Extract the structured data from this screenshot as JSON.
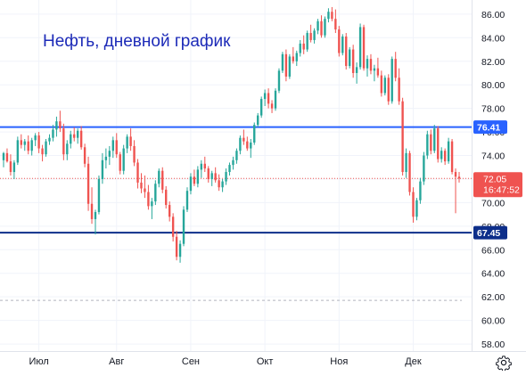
{
  "title": "Нефть, дневной график",
  "colors": {
    "up": "#26a69a",
    "down": "#ef5350",
    "resistance": "#2962ff",
    "support": "#0d2e8a",
    "current": "#ef5350",
    "grid": "#f0f3fa",
    "dashed": "#b2b5be"
  },
  "icons": {
    "settings": "gear-icon"
  },
  "chart_data": {
    "type": "candlestick",
    "ylim": [
      57.4,
      87.2
    ],
    "y_ticks": [
      "58.00",
      "60.00",
      "62.00",
      "64.00",
      "66.00",
      "68.00",
      "70.00",
      "72.00",
      "74.00",
      "76.00",
      "78.00",
      "80.00",
      "82.00",
      "84.00",
      "86.00"
    ],
    "x_ticks": [
      "Июл",
      "Авг",
      "Сен",
      "Окт",
      "Ноя",
      "Дек"
    ],
    "levels": [
      {
        "name": "resistance",
        "value": 76.41,
        "label": "76.41"
      },
      {
        "name": "support",
        "value": 67.45,
        "label": "67.45"
      }
    ],
    "current": {
      "value": 72.05,
      "label": "72.05",
      "countdown": "16:47:52"
    },
    "dashed_level": 61.7,
    "candles": [
      [
        73.6,
        74.3,
        73.0,
        74.2
      ],
      [
        74.2,
        74.6,
        73.4,
        73.5
      ],
      [
        73.5,
        74.1,
        72.3,
        72.6
      ],
      [
        72.6,
        73.6,
        72.0,
        73.4
      ],
      [
        73.4,
        75.6,
        73.2,
        75.3
      ],
      [
        75.3,
        75.8,
        74.6,
        74.9
      ],
      [
        74.9,
        75.4,
        74.4,
        75.2
      ],
      [
        75.2,
        75.7,
        74.1,
        74.4
      ],
      [
        74.4,
        75.5,
        74.0,
        75.3
      ],
      [
        75.3,
        75.9,
        74.8,
        75.7
      ],
      [
        75.7,
        76.0,
        74.2,
        74.6
      ],
      [
        74.6,
        74.9,
        73.5,
        74.1
      ],
      [
        74.1,
        75.4,
        73.9,
        75.2
      ],
      [
        75.2,
        75.8,
        74.9,
        75.5
      ],
      [
        75.5,
        76.6,
        75.2,
        76.2
      ],
      [
        76.2,
        77.3,
        75.6,
        76.9
      ],
      [
        76.9,
        77.8,
        76.0,
        76.3
      ],
      [
        76.3,
        76.7,
        73.6,
        74.1
      ],
      [
        74.1,
        75.3,
        73.6,
        75.0
      ],
      [
        75.0,
        76.1,
        74.6,
        75.8
      ],
      [
        75.8,
        76.4,
        75.2,
        75.5
      ],
      [
        75.5,
        76.3,
        75.0,
        76.1
      ],
      [
        76.1,
        76.5,
        74.5,
        74.7
      ],
      [
        74.7,
        75.0,
        73.0,
        73.3
      ],
      [
        73.3,
        73.9,
        69.3,
        69.9
      ],
      [
        69.9,
        71.3,
        68.2,
        68.6
      ],
      [
        68.6,
        69.4,
        67.3,
        69.2
      ],
      [
        69.2,
        72.3,
        69.0,
        72.0
      ],
      [
        72.0,
        74.2,
        71.6,
        73.6
      ],
      [
        73.6,
        74.6,
        72.9,
        73.9
      ],
      [
        73.9,
        74.8,
        73.2,
        74.4
      ],
      [
        74.4,
        75.6,
        73.8,
        75.3
      ],
      [
        75.3,
        75.9,
        73.8,
        74.1
      ],
      [
        74.1,
        74.3,
        72.4,
        72.7
      ],
      [
        72.7,
        74.9,
        72.4,
        74.6
      ],
      [
        74.6,
        75.8,
        74.2,
        75.6
      ],
      [
        75.6,
        76.3,
        74.4,
        74.8
      ],
      [
        74.8,
        75.3,
        73.1,
        73.4
      ],
      [
        73.4,
        73.7,
        71.2,
        71.7
      ],
      [
        71.7,
        72.5,
        70.8,
        71.2
      ],
      [
        71.2,
        72.3,
        70.4,
        70.9
      ],
      [
        70.9,
        71.5,
        69.4,
        69.7
      ],
      [
        69.7,
        70.4,
        68.6,
        70.1
      ],
      [
        70.1,
        71.9,
        69.8,
        71.6
      ],
      [
        71.6,
        72.9,
        71.3,
        72.7
      ],
      [
        72.7,
        73.0,
        70.8,
        71.1
      ],
      [
        71.1,
        71.4,
        69.5,
        69.8
      ],
      [
        69.8,
        70.1,
        68.4,
        68.8
      ],
      [
        68.8,
        69.1,
        66.7,
        67.1
      ],
      [
        67.1,
        67.6,
        65.1,
        65.4
      ],
      [
        65.4,
        66.8,
        64.9,
        66.5
      ],
      [
        66.5,
        69.7,
        66.3,
        69.4
      ],
      [
        69.4,
        71.3,
        69.2,
        71.0
      ],
      [
        71.0,
        72.5,
        70.7,
        72.2
      ],
      [
        72.2,
        72.8,
        71.4,
        71.6
      ],
      [
        71.6,
        73.1,
        71.3,
        72.8
      ],
      [
        72.8,
        73.6,
        72.1,
        73.3
      ],
      [
        73.3,
        73.9,
        72.6,
        72.9
      ],
      [
        72.9,
        73.1,
        71.7,
        72.0
      ],
      [
        72.0,
        72.7,
        71.4,
        72.5
      ],
      [
        72.5,
        73.0,
        71.7,
        71.9
      ],
      [
        71.9,
        72.4,
        71.0,
        71.3
      ],
      [
        71.3,
        72.0,
        70.9,
        71.8
      ],
      [
        71.8,
        72.9,
        71.5,
        72.6
      ],
      [
        72.6,
        73.4,
        72.3,
        73.2
      ],
      [
        73.2,
        73.9,
        72.8,
        73.6
      ],
      [
        73.6,
        74.6,
        73.3,
        74.4
      ],
      [
        74.4,
        75.7,
        74.1,
        75.5
      ],
      [
        75.5,
        76.2,
        74.9,
        75.2
      ],
      [
        75.2,
        75.6,
        74.4,
        74.6
      ],
      [
        74.6,
        75.4,
        73.8,
        75.1
      ],
      [
        75.1,
        76.8,
        74.9,
        76.6
      ],
      [
        76.6,
        77.6,
        76.4,
        77.4
      ],
      [
        77.4,
        79.0,
        77.2,
        78.8
      ],
      [
        78.8,
        79.6,
        78.2,
        79.3
      ],
      [
        79.3,
        79.7,
        78.0,
        78.4
      ],
      [
        78.4,
        78.7,
        77.6,
        78.0
      ],
      [
        78.0,
        79.7,
        77.8,
        79.5
      ],
      [
        79.5,
        81.4,
        79.3,
        81.2
      ],
      [
        81.2,
        82.8,
        81.0,
        82.6
      ],
      [
        82.6,
        83.0,
        80.3,
        80.7
      ],
      [
        80.7,
        82.6,
        80.5,
        82.4
      ],
      [
        82.4,
        83.2,
        81.8,
        82.0
      ],
      [
        82.0,
        82.9,
        81.6,
        82.7
      ],
      [
        82.7,
        83.8,
        82.4,
        83.5
      ],
      [
        83.5,
        84.2,
        82.6,
        83.0
      ],
      [
        83.0,
        84.6,
        82.8,
        84.4
      ],
      [
        84.4,
        85.1,
        83.6,
        83.8
      ],
      [
        83.8,
        84.8,
        83.5,
        84.6
      ],
      [
        84.6,
        85.6,
        84.3,
        85.4
      ],
      [
        85.4,
        85.9,
        84.0,
        84.2
      ],
      [
        84.2,
        85.8,
        84.0,
        85.6
      ],
      [
        85.6,
        86.5,
        85.3,
        86.2
      ],
      [
        86.2,
        86.6,
        85.4,
        85.6
      ],
      [
        85.6,
        86.4,
        84.4,
        84.7
      ],
      [
        84.7,
        85.0,
        82.4,
        82.7
      ],
      [
        82.7,
        84.3,
        82.5,
        84.1
      ],
      [
        84.1,
        84.4,
        81.3,
        81.6
      ],
      [
        81.6,
        83.2,
        81.4,
        83.0
      ],
      [
        83.0,
        83.4,
        80.6,
        81.0
      ],
      [
        81.0,
        81.9,
        80.1,
        81.5
      ],
      [
        81.5,
        85.2,
        81.3,
        84.9
      ],
      [
        84.9,
        85.1,
        81.2,
        81.4
      ],
      [
        81.4,
        82.5,
        80.7,
        82.2
      ],
      [
        82.2,
        82.6,
        80.9,
        81.2
      ],
      [
        81.2,
        81.7,
        80.3,
        81.4
      ],
      [
        81.4,
        82.3,
        80.6,
        80.8
      ],
      [
        80.8,
        81.2,
        79.0,
        79.3
      ],
      [
        79.3,
        80.8,
        79.1,
        80.6
      ],
      [
        80.6,
        80.9,
        78.3,
        78.6
      ],
      [
        78.6,
        82.4,
        78.4,
        82.2
      ],
      [
        82.2,
        82.8,
        80.3,
        80.6
      ],
      [
        80.6,
        81.4,
        78.3,
        78.6
      ],
      [
        78.6,
        78.9,
        72.3,
        72.6
      ],
      [
        72.6,
        74.6,
        72.1,
        74.2
      ],
      [
        74.2,
        74.4,
        70.6,
        70.9
      ],
      [
        70.9,
        71.3,
        68.3,
        68.8
      ],
      [
        68.8,
        70.4,
        68.5,
        70.2
      ],
      [
        70.2,
        72.1,
        69.9,
        71.8
      ],
      [
        71.8,
        74.3,
        71.5,
        74.0
      ],
      [
        74.0,
        76.1,
        73.7,
        75.8
      ],
      [
        75.8,
        76.2,
        74.1,
        74.4
      ],
      [
        74.4,
        76.6,
        74.2,
        76.3
      ],
      [
        76.3,
        76.5,
        73.4,
        73.7
      ],
      [
        73.7,
        74.7,
        73.4,
        74.4
      ],
      [
        74.4,
        74.6,
        73.2,
        73.5
      ],
      [
        73.5,
        75.5,
        73.3,
        75.2
      ],
      [
        75.2,
        75.4,
        72.4,
        72.6
      ],
      [
        72.6,
        72.9,
        69.1,
        72.2
      ],
      [
        72.2,
        72.6,
        71.7,
        72.05
      ]
    ]
  }
}
